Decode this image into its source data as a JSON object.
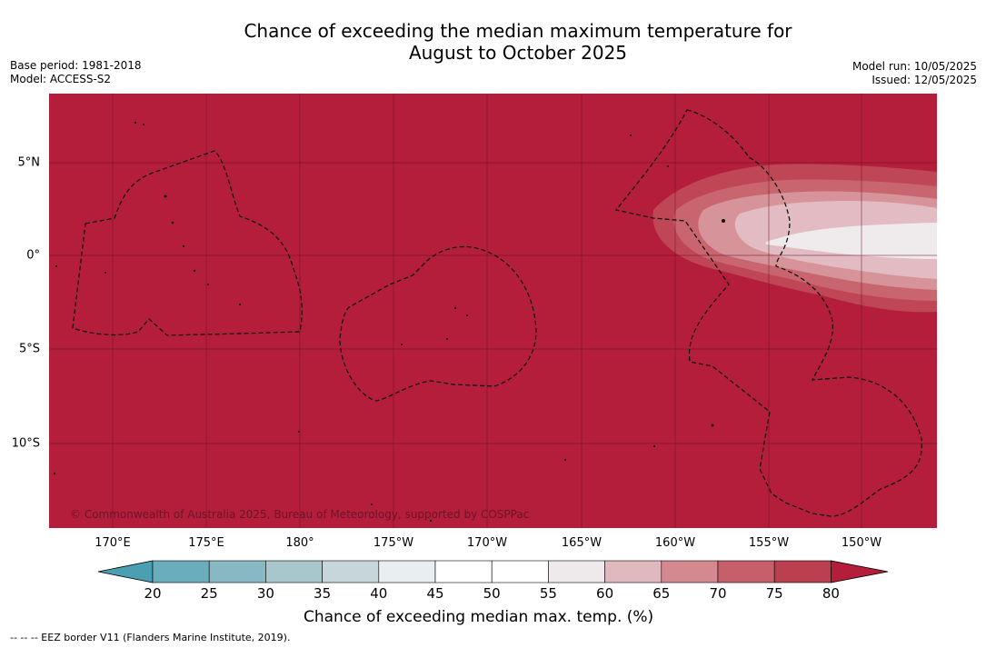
{
  "title_line1": "Chance of exceeding the median maximum temperature for",
  "title_line2": "August to October 2025",
  "base_period": "Base period: 1981-2018",
  "model": "Model: ACCESS-S2",
  "model_run": "Model run: 10/05/2025",
  "issued": "Issued: 12/05/2025",
  "copyright": "© Commonwealth of Australia 2025, Bureau of Meteorology, supported by COSPPac",
  "lon_labels": [
    "170°E",
    "175°E",
    "180°",
    "175°W",
    "170°W",
    "165°W",
    "160°W",
    "155°W",
    "150°W"
  ],
  "lat_labels": [
    "5°N",
    "0°",
    "5°S",
    "10°S"
  ],
  "colorbar": {
    "title": "Chance of exceeding median max. temp. (%)",
    "ticks": [
      "20",
      "25",
      "30",
      "35",
      "40",
      "45",
      "50",
      "55",
      "60",
      "65",
      "70",
      "75",
      "80"
    ],
    "colors": [
      "#4aa0b0",
      "#6aadbc",
      "#88b8c4",
      "#a8c7cc",
      "#c6d6da",
      "#e9eef0",
      "#ffffff",
      "#ffffff",
      "#eeeaeb",
      "#e0b9bf",
      "#d48990",
      "#c75f6b",
      "#bb3f4f",
      "#b41e3a"
    ]
  },
  "footnote": "--  --  -- EEZ border V11 (Flanders Marine Institute, 2019)."
}
